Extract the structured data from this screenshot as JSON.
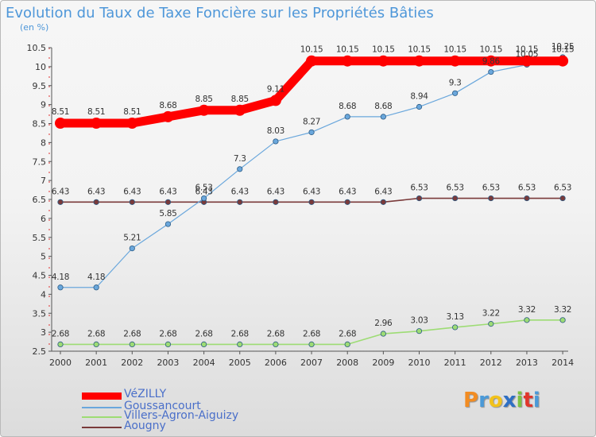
{
  "header": {
    "title": "Evolution du Taux de Taxe Foncière sur les Propriétés Bâties",
    "subtitle": "(en %)"
  },
  "logo": {
    "text": "Proxiti",
    "colors": [
      "#f28c22",
      "#4b9ad8",
      "#f2c21b",
      "#2e6fc4",
      "#7cc243",
      "#e0362c",
      "#4b9ad8"
    ]
  },
  "chart_data": {
    "type": "line",
    "title": "Evolution du Taux de Taxe Foncière sur les Propriétés Bâties",
    "subtitle": "(en %)",
    "x": [
      "2000",
      "2001",
      "2002",
      "2003",
      "2004",
      "2005",
      "2006",
      "2007",
      "2008",
      "2009",
      "2010",
      "2011",
      "2012",
      "2013",
      "2014"
    ],
    "ylim": [
      2.5,
      10.5
    ],
    "yticks": [
      2.5,
      3,
      3.5,
      4,
      4.5,
      5,
      5.5,
      6,
      6.5,
      7,
      7.5,
      8,
      8.5,
      9,
      9.5,
      10,
      10.5
    ],
    "ytick_labels": [
      "2.5",
      "3",
      "3.5",
      "4",
      "4.5",
      "5",
      "5.5",
      "6",
      "6.5",
      "7",
      "7.5",
      "8",
      "8.5",
      "9",
      "9.5",
      "10",
      "10.5"
    ],
    "grid": false,
    "legend_position": "bottom-left",
    "series": [
      {
        "name": "VéZILLY",
        "color": "#ff0000",
        "values": [
          8.51,
          8.51,
          8.51,
          8.68,
          8.85,
          8.85,
          9.11,
          10.15,
          10.15,
          10.15,
          10.15,
          10.15,
          10.15,
          10.15,
          10.15
        ],
        "labels": [
          "8.51",
          "8.51",
          "8.51",
          "8.68",
          "8.85",
          "8.85",
          "9.11",
          "10.15",
          "10.15",
          "10.15",
          "10.15",
          "10.15",
          "10.15",
          "10.15",
          "10.15"
        ]
      },
      {
        "name": "Goussancourt",
        "color": "#6aa7dc",
        "values": [
          4.18,
          4.18,
          5.21,
          5.85,
          6.53,
          7.3,
          8.03,
          8.27,
          8.68,
          8.68,
          8.94,
          9.3,
          9.86,
          10.05,
          10.25
        ],
        "labels": [
          "4.18",
          "4.18",
          "5.21",
          "5.85",
          "6.53",
          "7.3",
          "8.03",
          "8.27",
          "8.68",
          "8.68",
          "8.94",
          "9.3",
          "9.86",
          "10.05",
          "10.25"
        ]
      },
      {
        "name": "Villers-Agron-Aiguizy",
        "color": "#9ddc74",
        "values": [
          2.68,
          2.68,
          2.68,
          2.68,
          2.68,
          2.68,
          2.68,
          2.68,
          2.68,
          2.96,
          3.03,
          3.13,
          3.22,
          3.32,
          3.32
        ],
        "labels": [
          "2.68",
          "2.68",
          "2.68",
          "2.68",
          "2.68",
          "2.68",
          "2.68",
          "2.68",
          "2.68",
          "2.96",
          "3.03",
          "3.13",
          "3.22",
          "3.32",
          "3.32"
        ]
      },
      {
        "name": "Aougny",
        "color": "#7a3a3a",
        "values": [
          6.43,
          6.43,
          6.43,
          6.43,
          6.43,
          6.43,
          6.43,
          6.43,
          6.43,
          6.43,
          6.53,
          6.53,
          6.53,
          6.53,
          6.53
        ],
        "labels": [
          "6.43",
          "6.43",
          "6.43",
          "6.43",
          "6.43",
          "6.43",
          "6.43",
          "6.43",
          "6.43",
          "6.43",
          "6.53",
          "6.53",
          "6.53",
          "6.53",
          "6.53"
        ]
      }
    ]
  }
}
